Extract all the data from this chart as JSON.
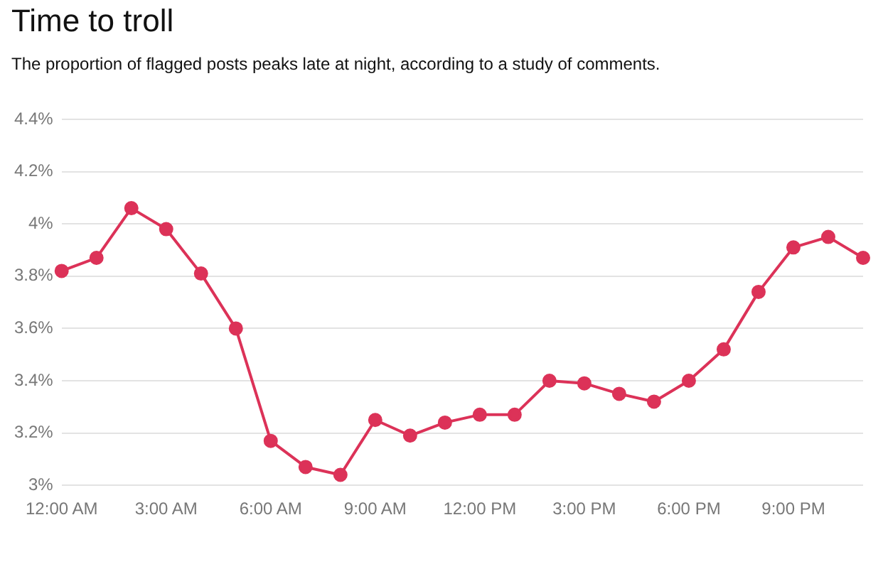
{
  "chart_data": {
    "type": "line",
    "title": "Time to troll",
    "subtitle": "The proportion of flagged posts peaks late at night, according to a study of comments.",
    "x": [
      0,
      1,
      2,
      3,
      4,
      5,
      6,
      7,
      8,
      9,
      10,
      11,
      12,
      13,
      14,
      15,
      16,
      17,
      18,
      19,
      20,
      21,
      22,
      23
    ],
    "series": [
      {
        "color": "#dc3258",
        "values": [
          3.82,
          3.87,
          4.06,
          3.98,
          3.81,
          3.6,
          3.17,
          3.07,
          3.04,
          3.25,
          3.19,
          3.24,
          3.27,
          3.27,
          3.4,
          3.39,
          3.35,
          3.32,
          3.4,
          3.52,
          3.74,
          3.91,
          3.95,
          3.87
        ]
      }
    ],
    "xlim": [
      0,
      23
    ],
    "xticks": [
      {
        "value": 0,
        "label": "12:00 AM"
      },
      {
        "value": 3,
        "label": "3:00 AM"
      },
      {
        "value": 6,
        "label": "6:00 AM"
      },
      {
        "value": 9,
        "label": "9:00 AM"
      },
      {
        "value": 12,
        "label": "12:00 PM"
      },
      {
        "value": 15,
        "label": "3:00 PM"
      },
      {
        "value": 18,
        "label": "6:00 PM"
      },
      {
        "value": 21,
        "label": "9:00 PM"
      }
    ],
    "ylim": [
      3,
      4.4
    ],
    "yticks": [
      {
        "value": 3,
        "label": "3%"
      },
      {
        "value": 3.2,
        "label": "3.2%"
      },
      {
        "value": 3.4,
        "label": "3.4%"
      },
      {
        "value": 3.6,
        "label": "3.6%"
      },
      {
        "value": 3.8,
        "label": "3.8%"
      },
      {
        "value": 4,
        "label": "4%"
      },
      {
        "value": 4.2,
        "label": "4.2%"
      },
      {
        "value": 4.4,
        "label": "4.4%"
      }
    ],
    "grid": "y",
    "legend": false,
    "marker": "circle",
    "line_style": "solid"
  }
}
